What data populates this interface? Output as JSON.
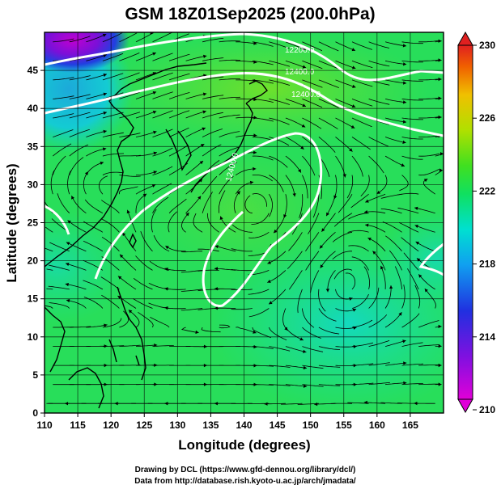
{
  "title": "GSM 18Z01Sep2025 (200.0hPa)",
  "xlabel": "Longitude (degrees)",
  "ylabel": "Latitude (degrees)",
  "footer": {
    "line1": "Drawing by DCL (https://www.gfd-dennou.org/library/dcl/)",
    "line2": "Data from http://database.rish.kyoto-u.ac.jp/arch/jmadata/"
  },
  "chart_data": {
    "type": "heatmap",
    "xlim": [
      110,
      170
    ],
    "ylim": [
      0,
      50
    ],
    "x_ticks": [
      110,
      115,
      120,
      125,
      130,
      135,
      140,
      145,
      150,
      155,
      160,
      165
    ],
    "y_ticks": [
      0,
      5,
      10,
      15,
      20,
      25,
      30,
      35,
      40,
      45
    ],
    "grid": true,
    "colorbar": {
      "ticks": [
        210,
        214,
        218,
        222,
        226,
        230
      ],
      "range": [
        210,
        230
      ],
      "colors": [
        "#e000d8",
        "#2020d8",
        "#00a8f0",
        "#00e8b0",
        "#30e030",
        "#b0e000",
        "#f0c800",
        "#f06000",
        "#e02020"
      ]
    },
    "contour_labels": [
      "12200.0",
      "12400.0",
      "12400.0",
      "12400.0"
    ]
  }
}
